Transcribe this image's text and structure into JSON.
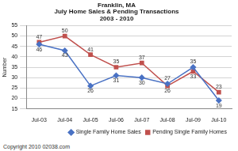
{
  "chart_data": {
    "type": "line",
    "title": [
      "Franklin, MA",
      "July Home Sales & Pending Transactions",
      "2003 - 2010"
    ],
    "y_label": "Number",
    "categories": [
      "Jul-03",
      "Jul-04",
      "Jul-05",
      "Jul-06",
      "Jul-07",
      "Jul-08",
      "Jul-09",
      "Jul-10"
    ],
    "series": [
      {
        "name": "Single Family Home Sales",
        "color": "#4a72c4",
        "marker": "diamond",
        "values": [
          46,
          43,
          26,
          31,
          30,
          27,
          35,
          19
        ]
      },
      {
        "name": "Pending Single Family Homes",
        "color": "#c0504d",
        "marker": "square",
        "values": [
          47,
          50,
          41,
          35,
          37,
          26,
          33,
          23
        ]
      }
    ],
    "ylim": [
      15,
      55
    ],
    "yticks": [
      15,
      20,
      25,
      30,
      35,
      40,
      45,
      50,
      55
    ],
    "grid": true,
    "legend": "bottom",
    "data_labels": true,
    "annotations": [
      "Copyright 2010 02038.com"
    ]
  }
}
